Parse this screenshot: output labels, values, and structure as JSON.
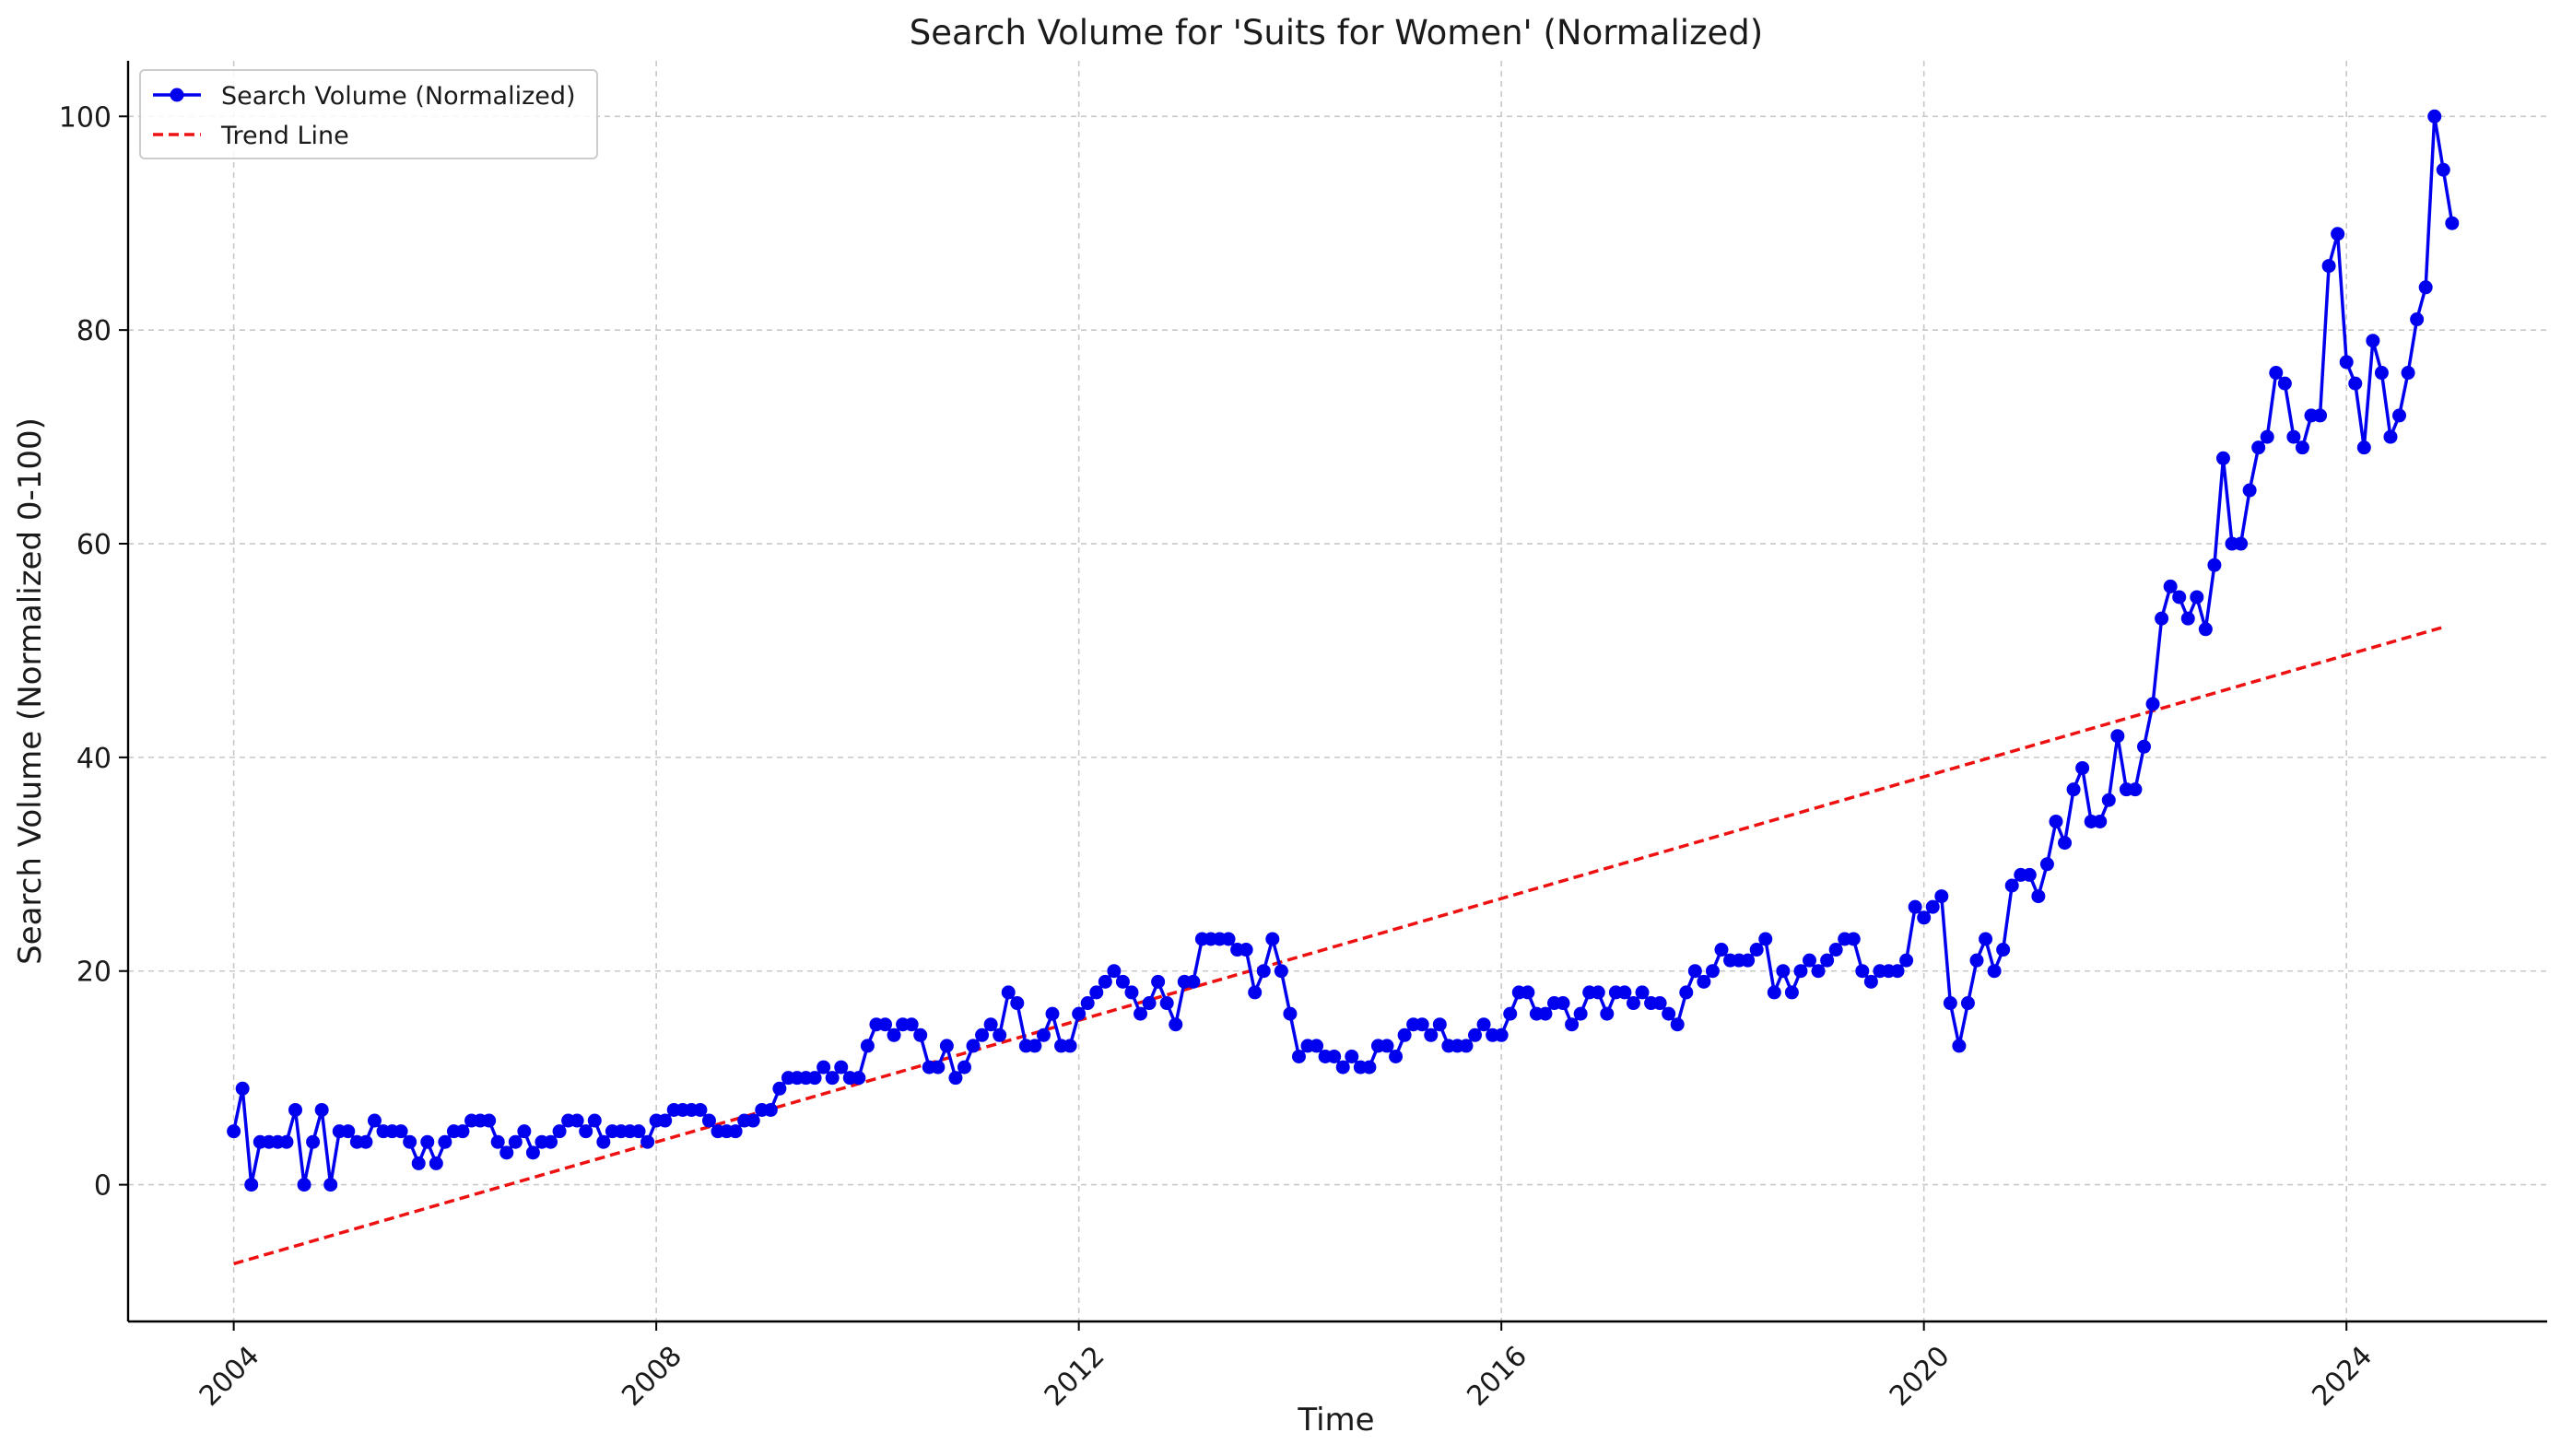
{
  "chart_data": {
    "type": "line",
    "title": "Search Volume for 'Suits for Women' (Normalized)",
    "xlabel": "Time",
    "ylabel": "Search Volume (Normalized 0-100)",
    "xlim": [
      2003.0,
      2025.9
    ],
    "ylim": [
      -12.8,
      105.2
    ],
    "xticks": [
      {
        "value": 2004,
        "label": "2004"
      },
      {
        "value": 2008,
        "label": "2008"
      },
      {
        "value": 2012,
        "label": "2012"
      },
      {
        "value": 2016,
        "label": "2016"
      },
      {
        "value": 2020,
        "label": "2020"
      },
      {
        "value": 2024,
        "label": "2024"
      }
    ],
    "yticks": [
      {
        "value": 0,
        "label": "0"
      },
      {
        "value": 20,
        "label": "20"
      },
      {
        "value": 40,
        "label": "40"
      },
      {
        "value": 60,
        "label": "60"
      },
      {
        "value": 80,
        "label": "80"
      },
      {
        "value": 100,
        "label": "100"
      }
    ],
    "grid": true,
    "legend_position": "top-left",
    "colors": {
      "search_volume": "#0000ee",
      "trend_line": "#ee1111"
    },
    "series": [
      {
        "name": "Search Volume (Normalized)",
        "style": "solid-line-with-markers",
        "x_start": "2004-01",
        "frequency": "monthly",
        "values": [
          5,
          9,
          0,
          4,
          4,
          4,
          4,
          7,
          0,
          4,
          7,
          0,
          5,
          5,
          4,
          4,
          6,
          5,
          5,
          5,
          4,
          2,
          4,
          2,
          4,
          5,
          5,
          6,
          6,
          6,
          4,
          3,
          4,
          5,
          3,
          4,
          4,
          5,
          6,
          6,
          5,
          6,
          4,
          5,
          5,
          5,
          5,
          4,
          6,
          6,
          7,
          7,
          7,
          7,
          6,
          5,
          5,
          5,
          6,
          6,
          7,
          7,
          9,
          10,
          10,
          10,
          10,
          11,
          10,
          11,
          10,
          10,
          13,
          15,
          15,
          14,
          15,
          15,
          14,
          11,
          11,
          13,
          10,
          11,
          13,
          14,
          15,
          14,
          18,
          17,
          13,
          13,
          14,
          16,
          13,
          13,
          16,
          17,
          18,
          19,
          20,
          19,
          18,
          16,
          17,
          19,
          17,
          15,
          19,
          19,
          23,
          23,
          23,
          23,
          22,
          22,
          18,
          20,
          23,
          20,
          16,
          12,
          13,
          13,
          12,
          12,
          11,
          12,
          11,
          11,
          13,
          13,
          12,
          14,
          15,
          15,
          14,
          15,
          13,
          13,
          13,
          14,
          15,
          14,
          14,
          16,
          18,
          18,
          16,
          16,
          17,
          17,
          15,
          16,
          18,
          18,
          16,
          18,
          18,
          17,
          18,
          17,
          17,
          16,
          15,
          18,
          20,
          19,
          20,
          22,
          21,
          21,
          21,
          22,
          23,
          18,
          20,
          18,
          20,
          21,
          20,
          21,
          22,
          23,
          23,
          20,
          19,
          20,
          20,
          20,
          21,
          26,
          25,
          26,
          27,
          17,
          13,
          17,
          21,
          23,
          20,
          22,
          28,
          29,
          29,
          27,
          30,
          34,
          32,
          37,
          39,
          34,
          34,
          36,
          42,
          37,
          37,
          41,
          45,
          53,
          56,
          55,
          53,
          55,
          52,
          58,
          68,
          60,
          60,
          65,
          69,
          70,
          76,
          75,
          70,
          69,
          72,
          72,
          86,
          89,
          77,
          75,
          69,
          79,
          76,
          70,
          72,
          76,
          81,
          84,
          100,
          95,
          90
        ]
      },
      {
        "name": "Trend Line",
        "style": "dashed",
        "x": [
          2004.0,
          2024.92
        ],
        "values": [
          -7.4,
          52.2
        ]
      }
    ]
  }
}
